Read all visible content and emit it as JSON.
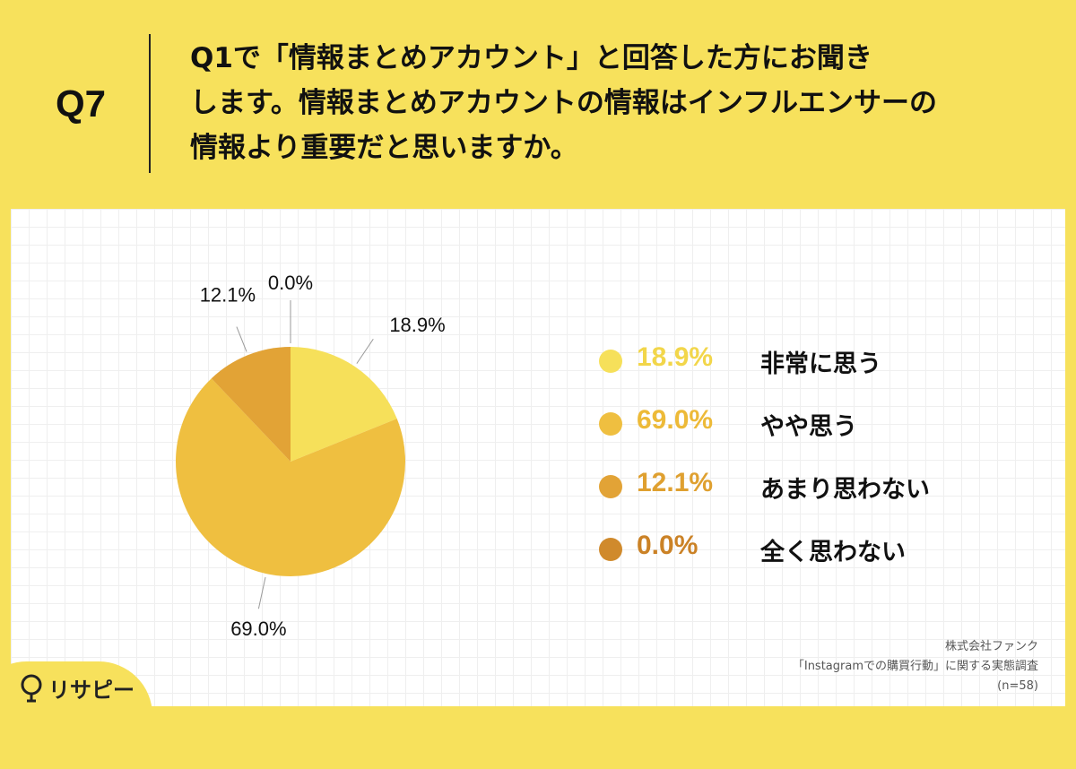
{
  "question": {
    "label": "Q7",
    "lines": [
      "Q1で「情報まとめアカウント」と回答した方にお聞き",
      "します。情報まとめアカウントの情報はインフルエンサーの",
      "情報より重要だと思いますか。"
    ]
  },
  "chart_data": {
    "type": "pie",
    "start": "12 o'clock, clockwise",
    "slices": [
      {
        "label": "非常に思う",
        "value": 18.9,
        "display": "18.9%",
        "color": "#F6E05A"
      },
      {
        "label": "やや思う",
        "value": 69.0,
        "display": "69.0%",
        "color": "#EFBF40"
      },
      {
        "label": "あまり思わない",
        "value": 12.1,
        "display": "12.1%",
        "color": "#E2A336"
      },
      {
        "label": "全く思わない",
        "value": 0.0,
        "display": "0.0%",
        "color": "#D08A2C"
      }
    ]
  },
  "legend_text_colors": [
    "#F2D64A",
    "#EDBA38",
    "#DFA030",
    "#CB8226"
  ],
  "source": {
    "company": "株式会社ファンク",
    "survey": "「Instagramでの購買行動」に関する実態調査",
    "sample": "(n=58)"
  },
  "brand": {
    "name": "リサピー",
    "icon": "lightbulb-icon"
  }
}
